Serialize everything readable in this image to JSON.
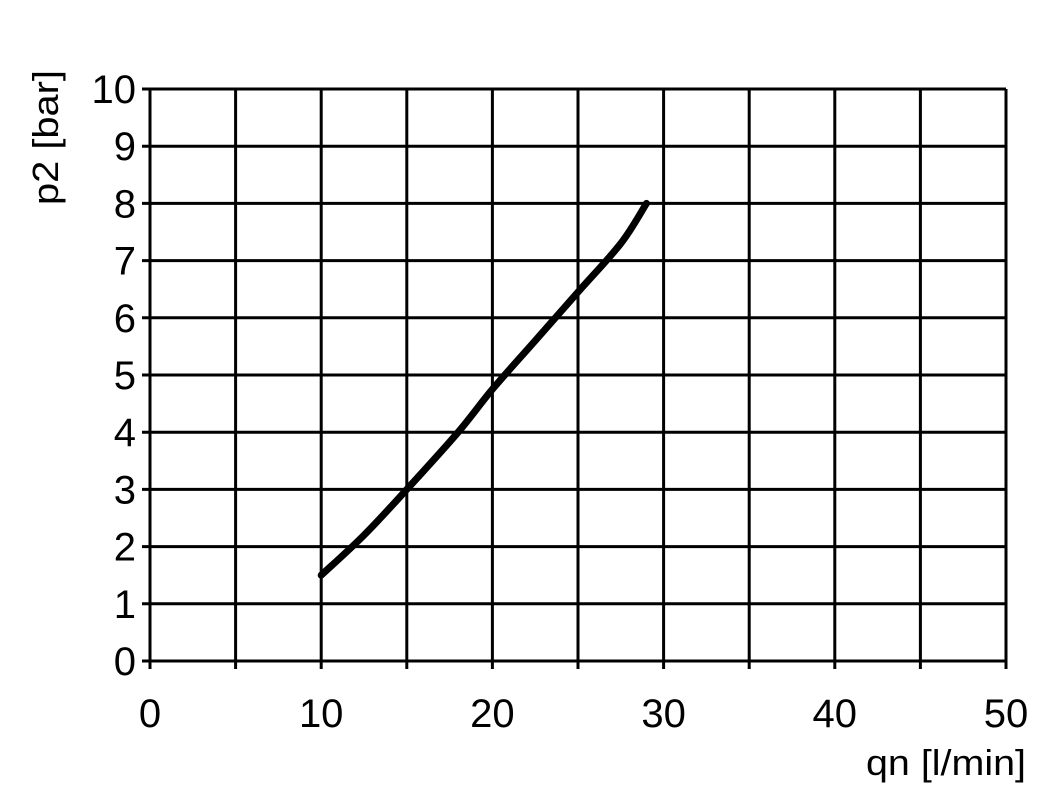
{
  "chart_data": {
    "type": "line",
    "title": "",
    "xlabel": "qn [l/min]",
    "ylabel": "p2 [bar]",
    "xlim": [
      0,
      50
    ],
    "ylim": [
      0,
      10
    ],
    "xticks": [
      0,
      10,
      20,
      30,
      40,
      50
    ],
    "yticks": [
      0,
      1,
      2,
      3,
      4,
      5,
      6,
      7,
      8,
      9,
      10
    ],
    "grid": true,
    "x_grid_step": 5,
    "y_grid_step": 1,
    "series": [
      {
        "color": "#000000",
        "x": [
          10,
          12.5,
          15,
          18,
          20,
          22.5,
          25,
          27.5,
          29
        ],
        "y": [
          1.5,
          2.2,
          3.0,
          4.0,
          4.75,
          5.6,
          6.45,
          7.3,
          8.0
        ]
      }
    ]
  }
}
